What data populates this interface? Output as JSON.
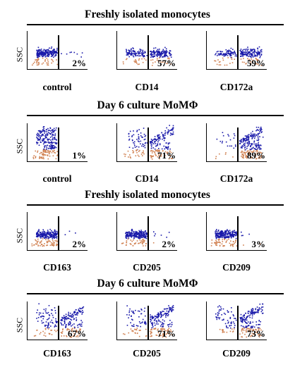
{
  "colors": {
    "positive": "#1a1aaa",
    "negative": "#d08050",
    "axis": "#000000"
  },
  "y_label": "SSC",
  "sections": [
    {
      "title": "Freshly isolated monocytes",
      "culture": false,
      "panels": [
        {
          "label": "control",
          "percent": "2%",
          "value": 2
        },
        {
          "label": "CD14",
          "percent": "57%",
          "value": 57
        },
        {
          "label": "CD172a",
          "percent": "59%",
          "value": 59
        }
      ]
    },
    {
      "title": "Day 6 culture MoMΦ",
      "culture": true,
      "panels": [
        {
          "label": "control",
          "percent": "1%",
          "value": 1
        },
        {
          "label": "CD14",
          "percent": "71%",
          "value": 71
        },
        {
          "label": "CD172a",
          "percent": "89%",
          "value": 89
        }
      ]
    },
    {
      "title": "Freshly isolated monocytes",
      "culture": false,
      "panels": [
        {
          "label": "CD163",
          "percent": "2%",
          "value": 2
        },
        {
          "label": "CD205",
          "percent": "2%",
          "value": 2
        },
        {
          "label": "CD209",
          "percent": "3%",
          "value": 3
        }
      ]
    },
    {
      "title": "Day 6 culture MoMΦ",
      "culture": true,
      "panels": [
        {
          "label": "CD163",
          "percent": "67%",
          "value": 67
        },
        {
          "label": "CD205",
          "percent": "71%",
          "value": 71
        },
        {
          "label": "CD209",
          "percent": "73%",
          "value": 73
        }
      ]
    }
  ],
  "chart_data": {
    "type": "scatter",
    "y_axis_label": "SSC",
    "groups": [
      {
        "title": "Freshly isolated monocytes",
        "markers": [
          "control",
          "CD14",
          "CD172a"
        ],
        "percent_positive": [
          2,
          57,
          59
        ]
      },
      {
        "title": "Day 6 culture MoMΦ",
        "markers": [
          "control",
          "CD14",
          "CD172a"
        ],
        "percent_positive": [
          1,
          71,
          89
        ]
      },
      {
        "title": "Freshly isolated monocytes",
        "markers": [
          "CD163",
          "CD205",
          "CD209"
        ],
        "percent_positive": [
          2,
          2,
          3
        ]
      },
      {
        "title": "Day 6 culture MoMΦ",
        "markers": [
          "CD163",
          "CD205",
          "CD209"
        ],
        "percent_positive": [
          67,
          71,
          73
        ]
      }
    ]
  }
}
